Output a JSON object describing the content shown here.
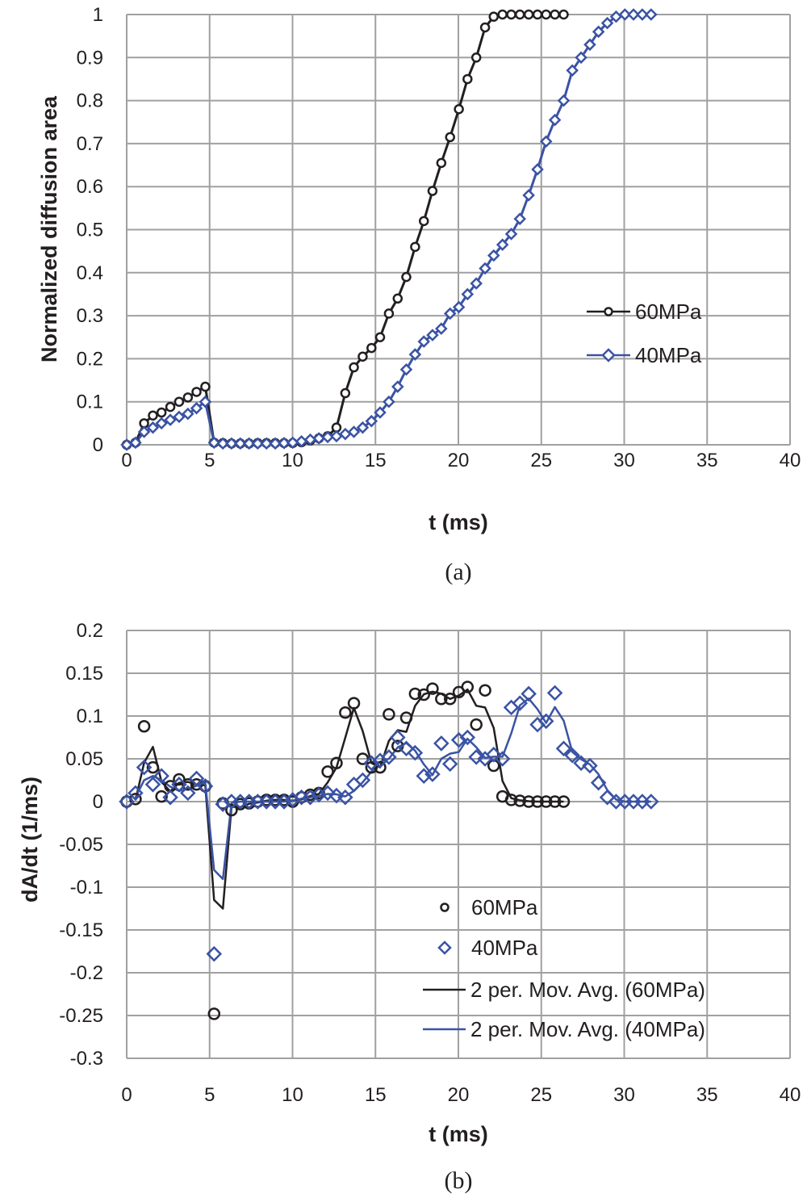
{
  "colors": {
    "s60": "#231f20",
    "s40": "#3a53a4",
    "grid": "#a0a0a0"
  },
  "chart_data": [
    {
      "id": "a",
      "type": "line",
      "caption": "(a)",
      "title": "",
      "xlabel": "t (ms)",
      "ylabel": "Normalized diffusion area",
      "xlim": [
        0,
        40
      ],
      "ylim": [
        0,
        1
      ],
      "xticks": [
        "0",
        "5",
        "10",
        "15",
        "20",
        "25",
        "30",
        "35",
        "40"
      ],
      "yticks": [
        "0",
        "0.1",
        "0.2",
        "0.3",
        "0.4",
        "0.5",
        "0.6",
        "0.7",
        "0.8",
        "0.9",
        "1"
      ],
      "grid": true,
      "legend_position": "right-middle",
      "series": [
        {
          "name": "60MPa",
          "marker": "circle",
          "line": true,
          "x": [
            0,
            0.53,
            1.05,
            1.58,
            2.1,
            2.63,
            3.16,
            3.69,
            4.21,
            4.74,
            5.27,
            5.8,
            6.32,
            6.85,
            7.38,
            7.9,
            8.43,
            8.96,
            9.49,
            10.01,
            10.54,
            11.07,
            11.59,
            12.12,
            12.65,
            13.18,
            13.7,
            14.23,
            14.76,
            15.28,
            15.81,
            16.34,
            16.86,
            17.39,
            17.92,
            18.44,
            18.97,
            19.5,
            20.03,
            20.55,
            21.08,
            21.61,
            22.13,
            22.66,
            23.19,
            23.71,
            24.24,
            24.77,
            25.29,
            25.82,
            26.35
          ],
          "y": [
            0,
            0.005,
            0.05,
            0.068,
            0.075,
            0.088,
            0.1,
            0.11,
            0.123,
            0.135,
            0.005,
            0.004,
            0.003,
            0.003,
            0.003,
            0.004,
            0.004,
            0.004,
            0.004,
            0.004,
            0.006,
            0.01,
            0.015,
            0.02,
            0.04,
            0.12,
            0.18,
            0.205,
            0.225,
            0.25,
            0.305,
            0.34,
            0.39,
            0.46,
            0.52,
            0.59,
            0.655,
            0.715,
            0.78,
            0.85,
            0.9,
            0.97,
            0.995,
            1,
            1,
            1,
            1,
            1,
            1,
            1,
            1
          ]
        },
        {
          "name": "40MPa",
          "marker": "diamond",
          "line": true,
          "x": [
            0,
            0.53,
            1.05,
            1.58,
            2.1,
            2.63,
            3.16,
            3.69,
            4.21,
            4.74,
            5.27,
            5.8,
            6.32,
            6.85,
            7.38,
            7.9,
            8.43,
            8.96,
            9.49,
            10.01,
            10.54,
            11.07,
            11.59,
            12.12,
            12.65,
            13.18,
            13.7,
            14.23,
            14.76,
            15.28,
            15.81,
            16.34,
            16.86,
            17.39,
            17.92,
            18.44,
            18.97,
            19.5,
            20.03,
            20.55,
            21.08,
            21.61,
            22.13,
            22.66,
            23.19,
            23.71,
            24.24,
            24.77,
            25.29,
            25.82,
            26.35,
            26.87,
            27.4,
            27.93,
            28.45,
            28.98,
            29.51,
            30.04,
            30.56,
            31.09,
            31.62
          ],
          "y": [
            0,
            0.005,
            0.03,
            0.04,
            0.05,
            0.058,
            0.065,
            0.072,
            0.085,
            0.1,
            0.005,
            0.003,
            0.003,
            0.003,
            0.003,
            0.003,
            0.003,
            0.003,
            0.004,
            0.005,
            0.008,
            0.012,
            0.015,
            0.018,
            0.02,
            0.025,
            0.03,
            0.04,
            0.055,
            0.075,
            0.1,
            0.135,
            0.175,
            0.21,
            0.24,
            0.255,
            0.27,
            0.305,
            0.32,
            0.35,
            0.375,
            0.41,
            0.44,
            0.465,
            0.49,
            0.525,
            0.58,
            0.64,
            0.705,
            0.755,
            0.8,
            0.87,
            0.9,
            0.93,
            0.96,
            0.98,
            0.995,
            1,
            1,
            1,
            1
          ]
        }
      ]
    },
    {
      "id": "b",
      "type": "scatter",
      "caption": "(b)",
      "title": "",
      "xlabel": "t (ms)",
      "ylabel": "dA/dt (1/ms)",
      "xlim": [
        0,
        40
      ],
      "ylim": [
        -0.3,
        0.2
      ],
      "xticks": [
        "0",
        "5",
        "10",
        "15",
        "20",
        "25",
        "30",
        "35",
        "40"
      ],
      "yticks": [
        "-0.3",
        "-0.25",
        "-0.2",
        "-0.15",
        "-0.1",
        "-0.05",
        "0",
        "0.05",
        "0.1",
        "0.15",
        "0.2"
      ],
      "grid": true,
      "legend_position": "bottom-right",
      "series": [
        {
          "name": "60MPa",
          "marker": "circle",
          "line": false,
          "x": [
            0,
            0.53,
            1.05,
            1.58,
            2.1,
            2.63,
            3.16,
            3.69,
            4.21,
            4.74,
            5.27,
            5.8,
            6.32,
            6.85,
            7.38,
            7.9,
            8.43,
            8.96,
            9.49,
            10.01,
            10.54,
            11.07,
            11.59,
            12.12,
            12.65,
            13.18,
            13.7,
            14.23,
            14.76,
            15.28,
            15.81,
            16.34,
            16.86,
            17.39,
            17.92,
            18.44,
            18.97,
            19.5,
            20.03,
            20.55,
            21.08,
            21.61,
            22.13,
            22.66,
            23.19,
            23.71,
            24.24,
            24.77,
            25.29,
            25.82,
            26.35
          ],
          "y": [
            0,
            0.003,
            0.088,
            0.04,
            0.006,
            0.018,
            0.026,
            0.02,
            0.02,
            0.018,
            -0.248,
            -0.002,
            -0.01,
            -0.003,
            -0.002,
            0,
            0.002,
            0.002,
            0.002,
            0,
            0.005,
            0.008,
            0.01,
            0.035,
            0.045,
            0.104,
            0.115,
            0.05,
            0.04,
            0.04,
            0.102,
            0.065,
            0.098,
            0.126,
            0.125,
            0.132,
            0.12,
            0.12,
            0.128,
            0.134,
            0.09,
            0.13,
            0.042,
            0.006,
            0.002,
            0.001,
            0,
            0,
            0,
            0,
            0
          ]
        },
        {
          "name": "40MPa",
          "marker": "diamond",
          "line": false,
          "x": [
            0,
            0.53,
            1.05,
            1.58,
            2.1,
            2.63,
            3.16,
            3.69,
            4.21,
            4.74,
            5.27,
            5.8,
            6.32,
            6.85,
            7.38,
            7.9,
            8.43,
            8.96,
            9.49,
            10.01,
            10.54,
            11.07,
            11.59,
            12.12,
            12.65,
            13.18,
            13.7,
            14.23,
            14.76,
            15.28,
            15.81,
            16.34,
            16.86,
            17.39,
            17.92,
            18.44,
            18.97,
            19.5,
            20.03,
            20.55,
            21.08,
            21.61,
            22.13,
            22.66,
            23.19,
            23.71,
            24.24,
            24.77,
            25.29,
            25.82,
            26.35,
            26.87,
            27.4,
            27.93,
            28.45,
            28.98,
            29.51,
            30.04,
            30.56,
            31.09,
            31.62
          ],
          "y": [
            0,
            0.01,
            0.04,
            0.02,
            0.03,
            0.005,
            0.02,
            0.01,
            0.027,
            0.018,
            -0.178,
            -0.003,
            0,
            0,
            0,
            0,
            0,
            0,
            0,
            0.002,
            0.005,
            0.005,
            0.008,
            0.01,
            0.007,
            0.005,
            0.02,
            0.025,
            0.045,
            0.048,
            0.052,
            0.075,
            0.062,
            0.057,
            0.03,
            0.032,
            0.068,
            0.044,
            0.072,
            0.075,
            0.052,
            0.05,
            0.055,
            0.05,
            0.11,
            0.115,
            0.126,
            0.09,
            0.094,
            0.127,
            0.062,
            0.054,
            0.045,
            0.042,
            0.022,
            0.005,
            0,
            0,
            0,
            0,
            0
          ]
        },
        {
          "name": "2 per. Mov. Avg. (60MPa)",
          "marker": "none",
          "line": true,
          "moving_average_of": "60MPa",
          "period": 2
        },
        {
          "name": "2 per. Mov. Avg. (40MPa)",
          "marker": "none",
          "line": true,
          "moving_average_of": "40MPa",
          "period": 2
        }
      ]
    }
  ]
}
